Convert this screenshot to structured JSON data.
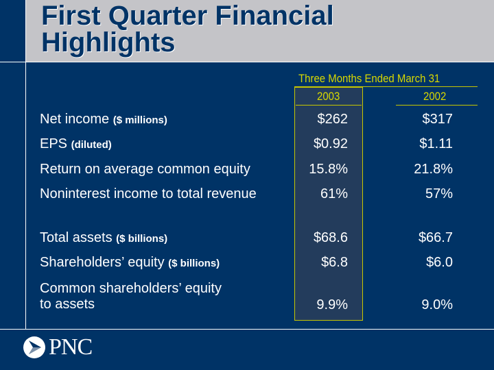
{
  "title": "First Quarter Financial Highlights",
  "table": {
    "period_header": "Three Months Ended March 31",
    "columns": [
      "2003",
      "2002"
    ],
    "rows": [
      {
        "label": "Net income",
        "unit": "($ millions)",
        "v2003": "$262",
        "v2002": "$317"
      },
      {
        "label": "EPS",
        "unit": "(diluted)",
        "v2003": "$0.92",
        "v2002": "$1.11"
      },
      {
        "label": "Return on average common equity",
        "unit": "",
        "v2003": "15.8%",
        "v2002": "21.8%"
      },
      {
        "label": "Noninterest income to total revenue",
        "unit": "",
        "v2003": "61%",
        "v2002": "57%"
      },
      {
        "label": "Total assets",
        "unit": "($ billions)",
        "v2003": "$68.6",
        "v2002": "$66.7"
      },
      {
        "label": "Shareholders’ equity",
        "unit": "($ billions)",
        "v2003": "$6.8",
        "v2002": "$6.0"
      },
      {
        "label": "Common shareholders’ equity",
        "label2": "to assets",
        "unit": "",
        "v2003": "9.9%",
        "v2002": "9.0%"
      }
    ]
  },
  "logo": {
    "text": "PNC"
  }
}
